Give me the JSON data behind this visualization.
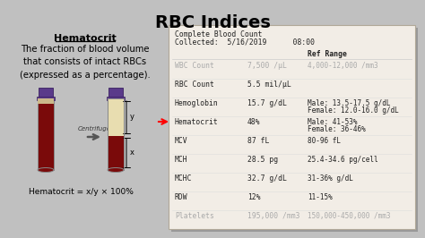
{
  "title": "RBC Indices",
  "bg_color": "#c0c0c0",
  "panel_bg": "#f2ede6",
  "panel_edge": "#b0a898",
  "left_heading": "Hematocrit",
  "left_desc": "The fraction of blood volume\nthat consists of intact RBCs\n(expressed as a percentage).",
  "left_formula": "Hematocrit = x/y × 100%",
  "table_header1": "Complete Blood Count",
  "table_header2": "Collected:  5/16/2019      08:00",
  "col_ref": "Ref Range",
  "rows": [
    {
      "name": "WBC Count",
      "value": "7,500 /μL",
      "ref": "4,000-12,000 /mm3",
      "faded": true,
      "arrow": false,
      "bold": false
    },
    {
      "name": "RBC Count",
      "value": "5.5 mil/μL",
      "ref": "",
      "faded": false,
      "arrow": false,
      "bold": false
    },
    {
      "name": "Hemoglobin",
      "value": "15.7 g/dL",
      "ref": "Male: 13.5-17.5 g/dL\nFemale: 12.0-16.0 g/dL",
      "faded": false,
      "arrow": false,
      "bold": false
    },
    {
      "name": "Hematocrit",
      "value": "48%",
      "ref": "Male: 41-53%\nFemale: 36-46%",
      "faded": false,
      "arrow": true,
      "bold": false
    },
    {
      "name": "MCV",
      "value": "87 fL",
      "ref": "80-96 fL",
      "faded": false,
      "arrow": false,
      "bold": false
    },
    {
      "name": "MCH",
      "value": "28.5 pg",
      "ref": "25.4-34.6 pg/cell",
      "faded": false,
      "arrow": false,
      "bold": false
    },
    {
      "name": "MCHC",
      "value": "32.7 g/dL",
      "ref": "31-36% g/dL",
      "faded": false,
      "arrow": false,
      "bold": false
    },
    {
      "name": "RDW",
      "value": "12%",
      "ref": "11-15%",
      "faded": false,
      "arrow": false,
      "bold": false
    },
    {
      "name": "Platelets",
      "value": "195,000 /mm3",
      "ref": "150,000-450,000 /mm3",
      "faded": true,
      "arrow": false,
      "bold": false
    }
  ],
  "tube_cap_color": "#5a3a8a",
  "tube_cap_dark": "#3a2060",
  "tube_blood_color": "#7a0a0a",
  "tube_serum_color": "#e8ddb0",
  "centrifuge_arrow_color": "#555555"
}
